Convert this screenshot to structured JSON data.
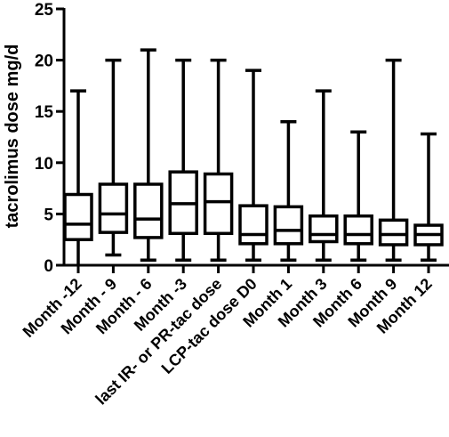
{
  "chart_data": {
    "type": "box",
    "title": "",
    "xlabel": "",
    "ylabel": "tacrolimus dose mg/d",
    "ylim": [
      0,
      25
    ],
    "yticks": [
      0,
      5,
      10,
      15,
      20,
      25
    ],
    "grid": false,
    "categories": [
      "Month -12",
      "Month - 9",
      "Month - 6",
      "Month -3",
      "last IR- or PR-tac dose",
      "LCP-tac dose D0",
      "Month 1",
      "Month 3",
      "Month 6",
      "Month 9",
      "Month 12"
    ],
    "boxes": [
      {
        "min": 0.0,
        "q1": 2.5,
        "median": 4.0,
        "q3": 6.9,
        "max": 17.0
      },
      {
        "min": 1.0,
        "q1": 3.2,
        "median": 5.0,
        "q3": 7.9,
        "max": 20.0
      },
      {
        "min": 0.5,
        "q1": 2.7,
        "median": 4.5,
        "q3": 7.9,
        "max": 21.0
      },
      {
        "min": 0.5,
        "q1": 3.1,
        "median": 6.0,
        "q3": 9.1,
        "max": 20.0
      },
      {
        "min": 0.5,
        "q1": 3.1,
        "median": 6.2,
        "q3": 8.9,
        "max": 20.0
      },
      {
        "min": 0.5,
        "q1": 2.1,
        "median": 3.0,
        "q3": 5.8,
        "max": 19.0
      },
      {
        "min": 0.5,
        "q1": 2.1,
        "median": 3.4,
        "q3": 5.7,
        "max": 14.0
      },
      {
        "min": 0.5,
        "q1": 2.3,
        "median": 3.0,
        "q3": 4.8,
        "max": 17.0
      },
      {
        "min": 0.5,
        "q1": 2.1,
        "median": 3.0,
        "q3": 4.8,
        "max": 13.0
      },
      {
        "min": 0.5,
        "q1": 2.0,
        "median": 3.0,
        "q3": 4.4,
        "max": 20.0
      },
      {
        "min": 0.5,
        "q1": 2.0,
        "median": 3.0,
        "q3": 3.9,
        "max": 12.8
      }
    ]
  }
}
